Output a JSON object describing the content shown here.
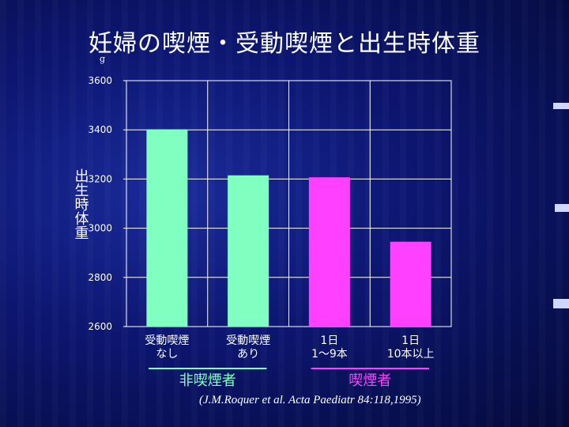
{
  "title": "妊婦の喫煙・受動喫煙と出生時体重",
  "citation": "(J.M.Roquer et al. Acta Paediatr 84:118,1995)",
  "colors": {
    "nonsmoker": "#80ffc0",
    "smoker": "#ff40ff",
    "background": "#0c1670"
  },
  "chart_data": {
    "type": "bar",
    "ylabel": "出生時体重",
    "yunit": "g",
    "ylim": [
      2600,
      3600
    ],
    "yticks": [
      2600,
      2800,
      3000,
      3200,
      3400,
      3600
    ],
    "grid": true,
    "categories": [
      [
        "受動喫煙",
        "なし"
      ],
      [
        "受動喫煙",
        "あり"
      ],
      [
        "1日",
        "1～9本"
      ],
      [
        "1日",
        "10本以上"
      ]
    ],
    "values": [
      3402,
      3215,
      3207,
      2945
    ],
    "groups": [
      {
        "label": "非喫煙者",
        "categories": [
          0,
          1
        ],
        "color": "#80ffc0"
      },
      {
        "label": "喫煙者",
        "categories": [
          2,
          3
        ],
        "color": "#ff40ff"
      }
    ]
  }
}
